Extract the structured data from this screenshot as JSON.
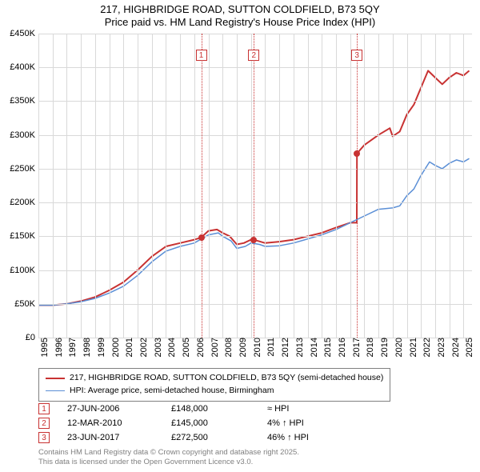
{
  "title": {
    "line1": "217, HIGHBRIDGE ROAD, SUTTON COLDFIELD, B73 5QY",
    "line2": "Price paid vs. HM Land Registry's House Price Index (HPI)"
  },
  "chart": {
    "type": "line",
    "background_color": "#ffffff",
    "grid_color": "#d9d9d9",
    "y": {
      "min": 0,
      "max": 450000,
      "step": 50000,
      "labels": [
        "£0",
        "£50K",
        "£100K",
        "£150K",
        "£200K",
        "£250K",
        "£300K",
        "£350K",
        "£400K",
        "£450K"
      ]
    },
    "x": {
      "min": 1995,
      "max": 2025.6,
      "labels": [
        "1995",
        "1996",
        "1997",
        "1998",
        "1999",
        "2000",
        "2001",
        "2002",
        "2003",
        "2004",
        "2005",
        "2006",
        "2007",
        "2008",
        "2009",
        "2010",
        "2011",
        "2012",
        "2013",
        "2014",
        "2015",
        "2016",
        "2017",
        "2018",
        "2019",
        "2020",
        "2021",
        "2022",
        "2023",
        "2024",
        "2025"
      ]
    },
    "series": [
      {
        "id": "price_paid",
        "label": "217, HIGHBRIDGE ROAD, SUTTON COLDFIELD, B73 5QY (semi-detached house)",
        "color": "#c83232",
        "line_width": 2,
        "points": [
          [
            1995.0,
            48000
          ],
          [
            1996.0,
            48000
          ],
          [
            1997.0,
            50000
          ],
          [
            1998.0,
            54000
          ],
          [
            1999.0,
            60000
          ],
          [
            2000.0,
            70000
          ],
          [
            2001.0,
            82000
          ],
          [
            2002.0,
            100000
          ],
          [
            2003.0,
            120000
          ],
          [
            2004.0,
            135000
          ],
          [
            2005.0,
            140000
          ],
          [
            2006.0,
            145000
          ],
          [
            2006.48,
            148000
          ],
          [
            2007.0,
            158000
          ],
          [
            2007.6,
            160000
          ],
          [
            2008.0,
            155000
          ],
          [
            2008.5,
            150000
          ],
          [
            2009.0,
            138000
          ],
          [
            2009.5,
            140000
          ],
          [
            2010.0,
            145000
          ],
          [
            2010.2,
            145000
          ],
          [
            2010.5,
            143000
          ],
          [
            2011.0,
            140000
          ],
          [
            2012.0,
            142000
          ],
          [
            2013.0,
            145000
          ],
          [
            2014.0,
            150000
          ],
          [
            2015.0,
            155000
          ],
          [
            2016.0,
            163000
          ],
          [
            2017.0,
            170000
          ],
          [
            2017.47,
            170000
          ],
          [
            2017.48,
            272500
          ],
          [
            2018.0,
            285000
          ],
          [
            2019.0,
            300000
          ],
          [
            2019.8,
            310000
          ],
          [
            2020.0,
            298000
          ],
          [
            2020.5,
            305000
          ],
          [
            2021.0,
            330000
          ],
          [
            2021.5,
            345000
          ],
          [
            2022.0,
            370000
          ],
          [
            2022.5,
            395000
          ],
          [
            2023.0,
            385000
          ],
          [
            2023.5,
            375000
          ],
          [
            2024.0,
            385000
          ],
          [
            2024.5,
            392000
          ],
          [
            2025.0,
            388000
          ],
          [
            2025.4,
            395000
          ]
        ]
      },
      {
        "id": "hpi",
        "label": "HPI: Average price, semi-detached house, Birmingham",
        "color": "#5b8fd6",
        "line_width": 1.5,
        "points": [
          [
            1995.0,
            48000
          ],
          [
            1996.0,
            48000
          ],
          [
            1997.0,
            50000
          ],
          [
            1998.0,
            53000
          ],
          [
            1999.0,
            58000
          ],
          [
            2000.0,
            66000
          ],
          [
            2001.0,
            76000
          ],
          [
            2002.0,
            92000
          ],
          [
            2003.0,
            112000
          ],
          [
            2004.0,
            128000
          ],
          [
            2005.0,
            135000
          ],
          [
            2006.0,
            140000
          ],
          [
            2007.0,
            152000
          ],
          [
            2007.7,
            155000
          ],
          [
            2008.0,
            150000
          ],
          [
            2008.6,
            143000
          ],
          [
            2009.0,
            132000
          ],
          [
            2009.6,
            135000
          ],
          [
            2010.0,
            140000
          ],
          [
            2010.6,
            138000
          ],
          [
            2011.0,
            135000
          ],
          [
            2012.0,
            136000
          ],
          [
            2013.0,
            140000
          ],
          [
            2014.0,
            146000
          ],
          [
            2015.0,
            152000
          ],
          [
            2016.0,
            160000
          ],
          [
            2017.0,
            170000
          ],
          [
            2018.0,
            180000
          ],
          [
            2019.0,
            190000
          ],
          [
            2020.0,
            192000
          ],
          [
            2020.5,
            195000
          ],
          [
            2021.0,
            210000
          ],
          [
            2021.5,
            220000
          ],
          [
            2022.0,
            240000
          ],
          [
            2022.6,
            260000
          ],
          [
            2023.0,
            255000
          ],
          [
            2023.5,
            250000
          ],
          [
            2024.0,
            258000
          ],
          [
            2024.5,
            263000
          ],
          [
            2025.0,
            260000
          ],
          [
            2025.4,
            265000
          ]
        ]
      }
    ],
    "sales": [
      {
        "n": "1",
        "date": "27-JUN-2006",
        "x": 2006.49,
        "price_val": 148000,
        "price": "£148,000",
        "delta": "≈ HPI"
      },
      {
        "n": "2",
        "date": "12-MAR-2010",
        "x": 2010.2,
        "price_val": 145000,
        "price": "£145,000",
        "delta": "4% ↑ HPI"
      },
      {
        "n": "3",
        "date": "23-JUN-2017",
        "x": 2017.48,
        "price_val": 272500,
        "price": "£272,500",
        "delta": "46% ↑ HPI"
      }
    ],
    "sale_line_color": "#c83232",
    "sale_marker_top": 20
  },
  "footer": {
    "line1": "Contains HM Land Registry data © Crown copyright and database right 2025.",
    "line2": "This data is licensed under the Open Government Licence v3.0."
  }
}
